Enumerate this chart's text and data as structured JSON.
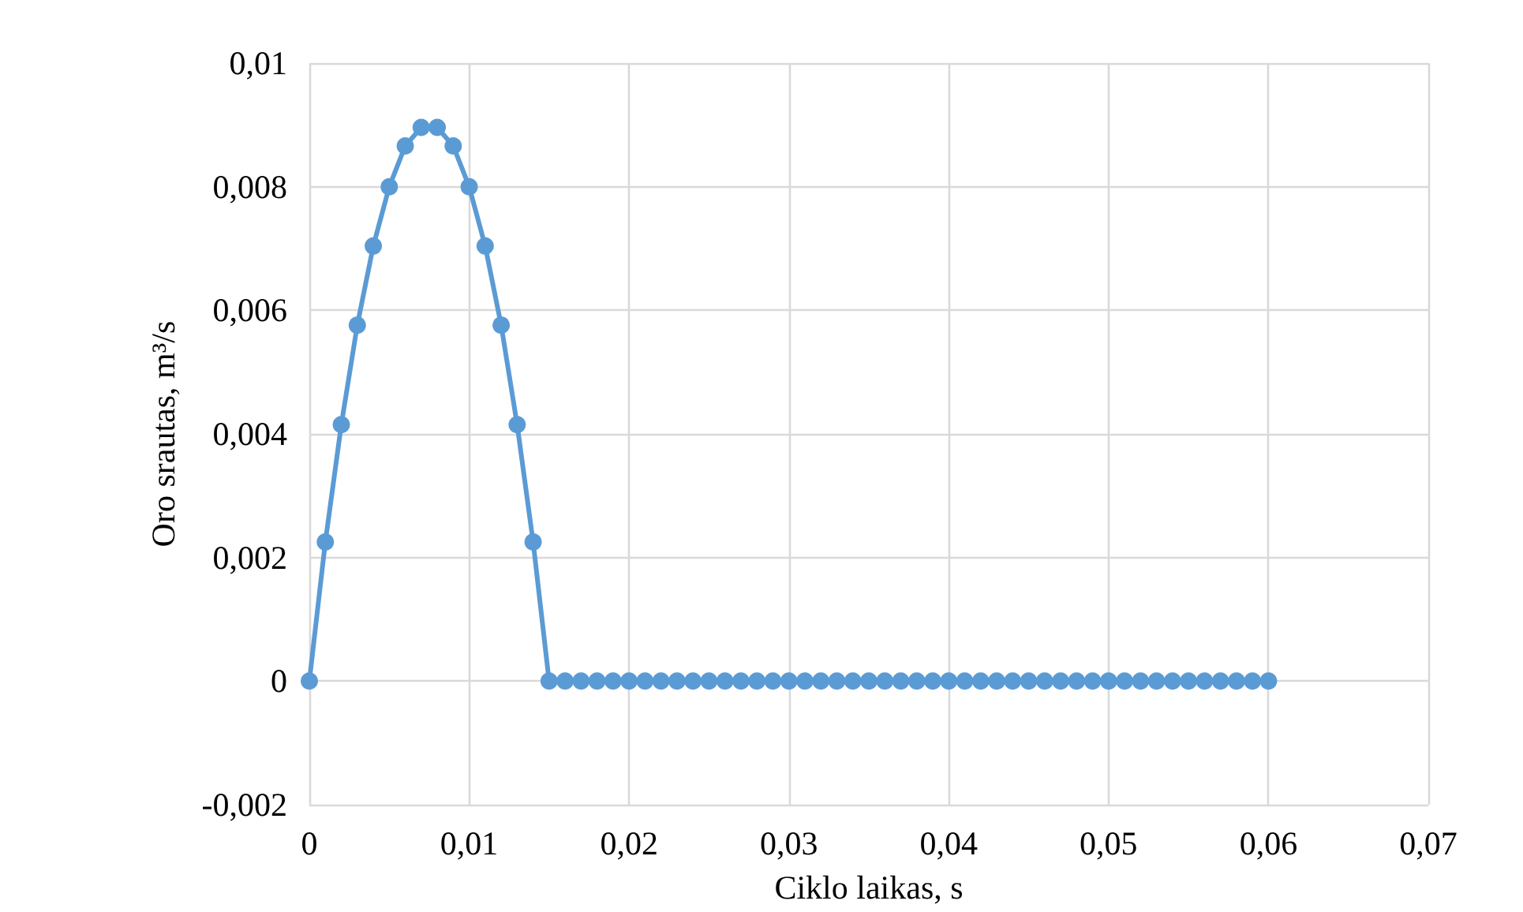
{
  "chart_data": {
    "type": "line",
    "xlabel": "Ciklo laikas, s",
    "ylabel": "Oro srautas, m³/s",
    "x": [
      0,
      0.001,
      0.002,
      0.003,
      0.004,
      0.005,
      0.006,
      0.007,
      0.008,
      0.009,
      0.01,
      0.011,
      0.012,
      0.013,
      0.014,
      0.015,
      0.016,
      0.017,
      0.018,
      0.019,
      0.02,
      0.021,
      0.022,
      0.023,
      0.024,
      0.025,
      0.026,
      0.027,
      0.028,
      0.029,
      0.03,
      0.031,
      0.032,
      0.033,
      0.034,
      0.035,
      0.036,
      0.037,
      0.038,
      0.039,
      0.04,
      0.041,
      0.042,
      0.043,
      0.044,
      0.045,
      0.046,
      0.047,
      0.048,
      0.049,
      0.05,
      0.051,
      0.052,
      0.053,
      0.054,
      0.055,
      0.056,
      0.057,
      0.058,
      0.059,
      0.06
    ],
    "series": [
      {
        "color": "#5b9bd5",
        "values": [
          0,
          0.00225,
          0.00415,
          0.00576,
          0.00704,
          0.008,
          0.00866,
          0.00896,
          0.00896,
          0.00866,
          0.008,
          0.00704,
          0.00576,
          0.00415,
          0.00225,
          0,
          0,
          0,
          0,
          0,
          0,
          0,
          0,
          0,
          0,
          0,
          0,
          0,
          0,
          0,
          0,
          0,
          0,
          0,
          0,
          0,
          0,
          0,
          0,
          0,
          0,
          0,
          0,
          0,
          0,
          0,
          0,
          0,
          0,
          0,
          0,
          0,
          0,
          0,
          0,
          0,
          0,
          0,
          0,
          0,
          0
        ]
      }
    ],
    "xlim": [
      0,
      0.07
    ],
    "xticks": [
      {
        "value": 0,
        "label": "0"
      },
      {
        "value": 0.01,
        "label": "0,01"
      },
      {
        "value": 0.02,
        "label": "0,02"
      },
      {
        "value": 0.03,
        "label": "0,03"
      },
      {
        "value": 0.04,
        "label": "0,04"
      },
      {
        "value": 0.05,
        "label": "0,05"
      },
      {
        "value": 0.06,
        "label": "0,06"
      },
      {
        "value": 0.07,
        "label": "0,07"
      }
    ],
    "ylim": [
      -0.002,
      0.01
    ],
    "yticks": [
      {
        "value": -0.002,
        "label": "-0,002"
      },
      {
        "value": 0,
        "label": "0"
      },
      {
        "value": 0.002,
        "label": "0,002"
      },
      {
        "value": 0.004,
        "label": "0,004"
      },
      {
        "value": 0.006,
        "label": "0,006"
      },
      {
        "value": 0.008,
        "label": "0,008"
      },
      {
        "value": 0.01,
        "label": "0,01"
      }
    ],
    "grid": true,
    "marker": "circle",
    "line_style": "solid"
  }
}
